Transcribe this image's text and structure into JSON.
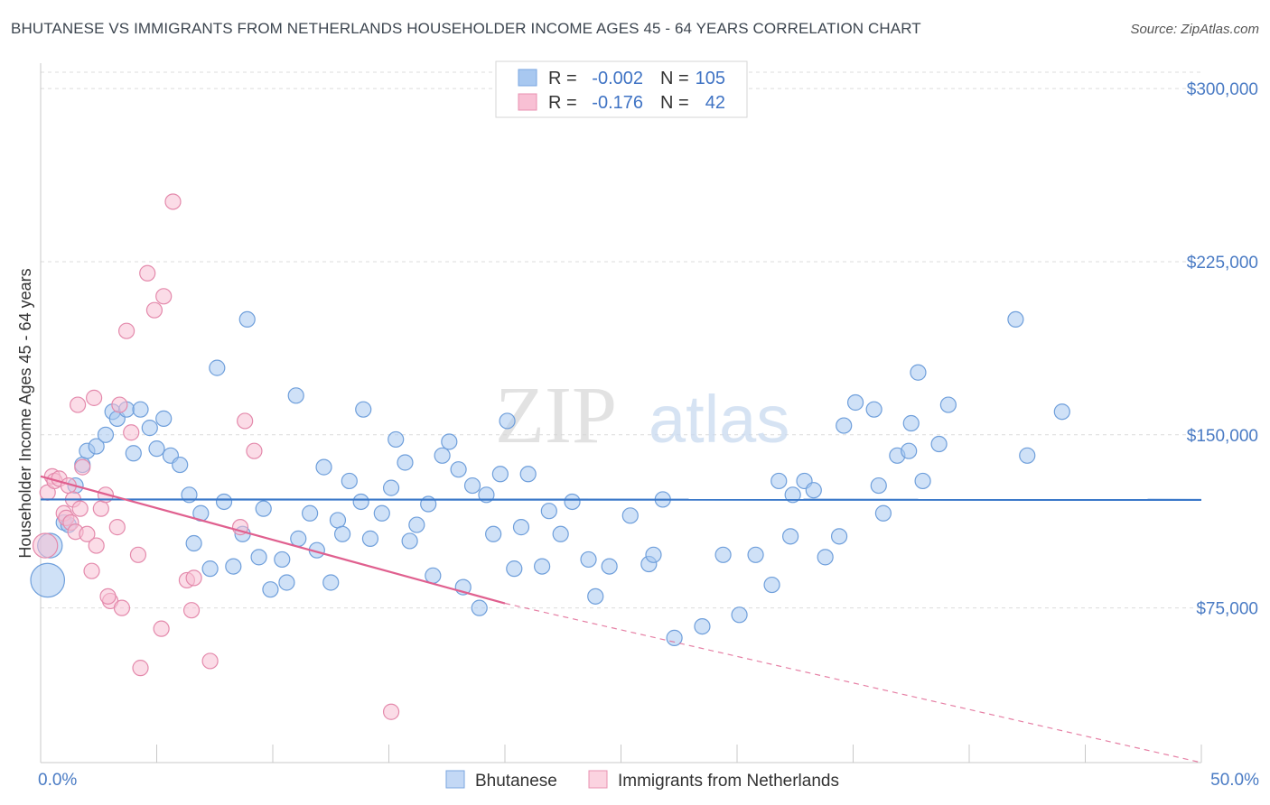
{
  "title": "BHUTANESE VS IMMIGRANTS FROM NETHERLANDS HOUSEHOLDER INCOME AGES 45 - 64 YEARS CORRELATION CHART",
  "source": "Source: ZipAtlas.com",
  "watermark": {
    "zip": "ZIP",
    "atlas": "atlas"
  },
  "legend_top": {
    "rows": [
      {
        "r_label": "R =",
        "r_value": "-0.002",
        "n_label": "N =",
        "n_value": "105",
        "color": "#a8c8f0",
        "stroke": "#7aa6e0"
      },
      {
        "r_label": "R =",
        "r_value": "-0.176",
        "n_label": "N =",
        "n_value": "42",
        "color": "#f8c0d4",
        "stroke": "#e890b0"
      }
    ]
  },
  "legend_bottom": [
    {
      "label": "Bhutanese",
      "color": "#c3d8f5",
      "stroke": "#7aa6e0"
    },
    {
      "label": "Immigrants from Netherlands",
      "color": "#fbd3e0",
      "stroke": "#e890b0"
    }
  ],
  "chart_data": {
    "type": "scatter",
    "title": "BHUTANESE VS IMMIGRANTS FROM NETHERLANDS HOUSEHOLDER INCOME AGES 45 - 64 YEARS CORRELATION CHART",
    "xlabel": "",
    "ylabel": "Householder Income Ages 45 - 64 years",
    "xlim": [
      0,
      50
    ],
    "ylim": [
      8000,
      311000
    ],
    "x_tick_labels": {
      "left": "0.0%",
      "right": "50.0%"
    },
    "y_ticks": [
      {
        "value": 75000,
        "label": "$75,000"
      },
      {
        "value": 150000,
        "label": "$150,000"
      },
      {
        "value": 225000,
        "label": "$225,000"
      },
      {
        "value": 300000,
        "label": "$300,000"
      }
    ],
    "series": [
      {
        "name": "Bhutanese",
        "color": "#a8c8f0",
        "stroke": "#6f9fdb",
        "trend": {
          "x0": 0,
          "y0": 122000,
          "x1": 50,
          "y1": 121800,
          "style": "solid",
          "color": "#3a78c9"
        },
        "points": [
          [
            0.3,
            87000,
            2.2
          ],
          [
            0.4,
            102000,
            1.6
          ],
          [
            1.0,
            112000,
            1.0
          ],
          [
            1.2,
            111000,
            1.0
          ],
          [
            1.5,
            128000,
            1.0
          ],
          [
            1.8,
            137000,
            1.0
          ],
          [
            2.0,
            143000,
            1.0
          ],
          [
            2.4,
            145000,
            1.0
          ],
          [
            2.8,
            150000,
            1.0
          ],
          [
            3.1,
            160000,
            1.0
          ],
          [
            3.3,
            157000,
            1.0
          ],
          [
            3.7,
            161000,
            1.0
          ],
          [
            4.0,
            142000,
            1.0
          ],
          [
            4.3,
            161000,
            1.0
          ],
          [
            4.7,
            153000,
            1.0
          ],
          [
            5.0,
            144000,
            1.0
          ],
          [
            5.3,
            157000,
            1.0
          ],
          [
            5.6,
            141000,
            1.0
          ],
          [
            6.0,
            137000,
            1.0
          ],
          [
            6.4,
            124000,
            1.0
          ],
          [
            6.6,
            103000,
            1.0
          ],
          [
            6.9,
            116000,
            1.0
          ],
          [
            7.3,
            92000,
            1.0
          ],
          [
            7.6,
            179000,
            1.0
          ],
          [
            7.9,
            121000,
            1.0
          ],
          [
            8.3,
            93000,
            1.0
          ],
          [
            8.7,
            107000,
            1.0
          ],
          [
            8.9,
            200000,
            1.0
          ],
          [
            9.4,
            97000,
            1.0
          ],
          [
            9.6,
            118000,
            1.0
          ],
          [
            9.9,
            83000,
            1.0
          ],
          [
            10.4,
            96000,
            1.0
          ],
          [
            10.6,
            86000,
            1.0
          ],
          [
            11.0,
            167000,
            1.0
          ],
          [
            11.1,
            105000,
            1.0
          ],
          [
            11.6,
            116000,
            1.0
          ],
          [
            11.9,
            100000,
            1.0
          ],
          [
            12.2,
            136000,
            1.0
          ],
          [
            12.5,
            86000,
            1.0
          ],
          [
            12.8,
            113000,
            1.0
          ],
          [
            13.0,
            107000,
            1.0
          ],
          [
            13.3,
            130000,
            1.0
          ],
          [
            13.8,
            121000,
            1.0
          ],
          [
            13.9,
            161000,
            1.0
          ],
          [
            14.2,
            105000,
            1.0
          ],
          [
            14.7,
            116000,
            1.0
          ],
          [
            15.1,
            127000,
            1.0
          ],
          [
            15.3,
            148000,
            1.0
          ],
          [
            15.7,
            138000,
            1.0
          ],
          [
            15.9,
            104000,
            1.0
          ],
          [
            16.2,
            111000,
            1.0
          ],
          [
            16.7,
            120000,
            1.0
          ],
          [
            16.9,
            89000,
            1.0
          ],
          [
            17.3,
            141000,
            1.0
          ],
          [
            17.6,
            147000,
            1.0
          ],
          [
            18.0,
            135000,
            1.0
          ],
          [
            18.2,
            84000,
            1.0
          ],
          [
            18.6,
            128000,
            1.0
          ],
          [
            18.9,
            75000,
            1.0
          ],
          [
            19.2,
            124000,
            1.0
          ],
          [
            19.5,
            107000,
            1.0
          ],
          [
            19.8,
            133000,
            1.0
          ],
          [
            20.1,
            156000,
            1.0
          ],
          [
            20.4,
            92000,
            1.0
          ],
          [
            20.7,
            110000,
            1.0
          ],
          [
            21.0,
            133000,
            1.0
          ],
          [
            21.6,
            93000,
            1.0
          ],
          [
            21.9,
            117000,
            1.0
          ],
          [
            22.4,
            107000,
            1.0
          ],
          [
            22.9,
            121000,
            1.0
          ],
          [
            23.6,
            96000,
            1.0
          ],
          [
            23.9,
            80000,
            1.0
          ],
          [
            24.5,
            93000,
            1.0
          ],
          [
            25.4,
            115000,
            1.0
          ],
          [
            26.2,
            94000,
            1.0
          ],
          [
            26.4,
            98000,
            1.0
          ],
          [
            26.8,
            122000,
            1.0
          ],
          [
            27.3,
            62000,
            1.0
          ],
          [
            28.5,
            67000,
            1.0
          ],
          [
            29.4,
            98000,
            1.0
          ],
          [
            30.1,
            72000,
            1.0
          ],
          [
            30.8,
            98000,
            1.0
          ],
          [
            31.5,
            85000,
            1.0
          ],
          [
            31.8,
            130000,
            1.0
          ],
          [
            32.4,
            124000,
            1.0
          ],
          [
            32.3,
            106000,
            1.0
          ],
          [
            32.9,
            130000,
            1.0
          ],
          [
            33.3,
            126000,
            1.0
          ],
          [
            33.8,
            97000,
            1.0
          ],
          [
            34.6,
            154000,
            1.0
          ],
          [
            34.4,
            106000,
            1.0
          ],
          [
            35.1,
            164000,
            1.0
          ],
          [
            35.9,
            161000,
            1.0
          ],
          [
            36.1,
            128000,
            1.0
          ],
          [
            36.3,
            116000,
            1.0
          ],
          [
            36.9,
            141000,
            1.0
          ],
          [
            37.5,
            155000,
            1.0
          ],
          [
            37.4,
            143000,
            1.0
          ],
          [
            38.0,
            130000,
            1.0
          ],
          [
            38.7,
            146000,
            1.0
          ],
          [
            37.8,
            177000,
            1.0
          ],
          [
            39.1,
            163000,
            1.0
          ],
          [
            42.5,
            141000,
            1.0
          ],
          [
            42.0,
            200000,
            1.0
          ],
          [
            44.0,
            160000,
            1.0
          ]
        ]
      },
      {
        "name": "Immigrants from Netherlands",
        "color": "#f8c0d4",
        "stroke": "#e48aac",
        "trend": {
          "x0": 0,
          "y0": 132000,
          "x1": 20,
          "y1": 77000,
          "style": "solid",
          "color": "#e0608f",
          "dash_x1": 50,
          "dash_y1": -5000
        },
        "points": [
          [
            0.2,
            102000,
            1.6
          ],
          [
            0.3,
            125000,
            1.0
          ],
          [
            0.5,
            132000,
            1.0
          ],
          [
            0.6,
            130000,
            1.0
          ],
          [
            0.8,
            131000,
            1.0
          ],
          [
            1.0,
            116000,
            1.0
          ],
          [
            1.1,
            114000,
            1.0
          ],
          [
            1.2,
            128000,
            1.0
          ],
          [
            1.3,
            112000,
            1.0
          ],
          [
            1.4,
            122000,
            1.0
          ],
          [
            1.5,
            108000,
            1.0
          ],
          [
            1.6,
            163000,
            1.0
          ],
          [
            1.7,
            118000,
            1.0
          ],
          [
            1.8,
            136000,
            1.0
          ],
          [
            2.0,
            107000,
            1.0
          ],
          [
            2.2,
            91000,
            1.0
          ],
          [
            2.3,
            166000,
            1.0
          ],
          [
            2.4,
            102000,
            1.0
          ],
          [
            2.6,
            118000,
            1.0
          ],
          [
            2.8,
            124000,
            1.0
          ],
          [
            3.0,
            78000,
            1.0
          ],
          [
            2.9,
            80000,
            1.0
          ],
          [
            3.3,
            110000,
            1.0
          ],
          [
            3.5,
            75000,
            1.0
          ],
          [
            3.7,
            195000,
            1.0
          ],
          [
            3.4,
            163000,
            1.0
          ],
          [
            3.9,
            151000,
            1.0
          ],
          [
            4.2,
            98000,
            1.0
          ],
          [
            4.3,
            49000,
            1.0
          ],
          [
            4.6,
            220000,
            1.0
          ],
          [
            4.9,
            204000,
            1.0
          ],
          [
            5.2,
            66000,
            1.0
          ],
          [
            5.3,
            210000,
            1.0
          ],
          [
            5.7,
            251000,
            1.0
          ],
          [
            6.3,
            87000,
            1.0
          ],
          [
            6.5,
            74000,
            1.0
          ],
          [
            6.6,
            88000,
            1.0
          ],
          [
            7.3,
            52000,
            1.0
          ],
          [
            8.6,
            110000,
            1.0
          ],
          [
            8.8,
            156000,
            1.0
          ],
          [
            9.2,
            143000,
            1.0
          ],
          [
            15.1,
            30000,
            1.0
          ]
        ]
      }
    ]
  }
}
